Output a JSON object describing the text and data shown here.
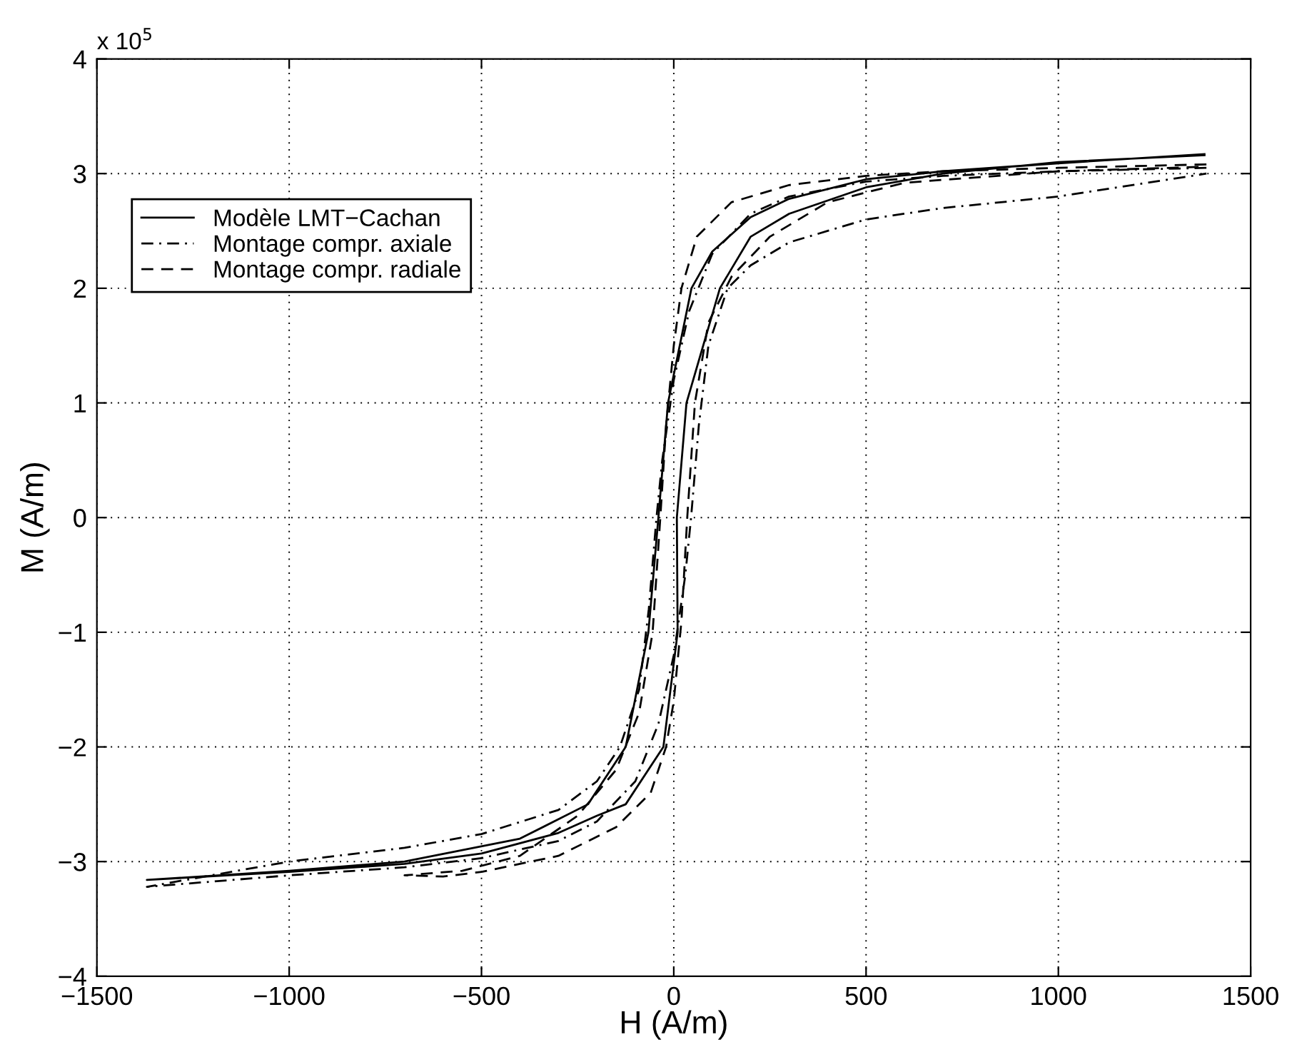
{
  "chart_data": {
    "type": "line",
    "xlabel": "H (A/m)",
    "ylabel": "M (A/m)",
    "xlim": [
      -1500,
      1500
    ],
    "xticks": [
      -1500,
      -1000,
      -500,
      0,
      500,
      1000,
      1500
    ],
    "ylim": [
      -4,
      4
    ],
    "yticks": [
      -4,
      -3,
      -2,
      -1,
      0,
      1,
      2,
      3,
      4
    ],
    "grid": true,
    "legend": "top left",
    "annotations": [
      "x 10$^{5}$"
    ],
    "series": [
      {
        "name": "Modèle LMT−Cachan",
        "color": "#000000",
        "line_style": "solid",
        "x": [
          1380,
          1000,
          700,
          500,
          300,
          200,
          100,
          46,
          -15,
          -40,
          -66,
          -125,
          -223,
          -400,
          -700,
          -1000,
          -1370,
          -1000,
          -700,
          -500,
          -300,
          -200,
          -125,
          -27,
          10,
          8,
          33,
          120,
          200,
          300,
          500,
          700,
          1000,
          1380
        ],
        "values": [
          3.17,
          3.09,
          3.02,
          2.95,
          2.78,
          2.62,
          2.32,
          2.0,
          1.0,
          0,
          -1.0,
          -2.0,
          -2.5,
          -2.8,
          -3.0,
          -3.08,
          -3.16,
          -3.09,
          -3.02,
          -2.93,
          -2.75,
          -2.6,
          -2.5,
          -2.0,
          -1.0,
          0,
          1.0,
          2.0,
          2.45,
          2.65,
          2.88,
          3.0,
          3.1,
          3.16
        ]
      },
      {
        "name": "Montage compr. axiale",
        "color": "#000000",
        "line_style": "dashdot",
        "x": [
          1385,
          1000,
          700,
          500,
          300,
          200,
          100,
          40,
          0,
          -30,
          -45,
          -65,
          -90,
          -140,
          -200,
          -300,
          -500,
          -700,
          -1000,
          -1370,
          -1000,
          -700,
          -500,
          -300,
          -200,
          -100,
          -40,
          0,
          30,
          45,
          65,
          90,
          140,
          200,
          300,
          500,
          700,
          1000,
          1385
        ],
        "values": [
          3.05,
          3.02,
          2.98,
          2.93,
          2.8,
          2.65,
          2.3,
          1.8,
          1.2,
          0.5,
          0,
          -0.8,
          -1.5,
          -2.0,
          -2.3,
          -2.55,
          -2.76,
          -2.88,
          -3.0,
          -3.22,
          -3.12,
          -3.05,
          -2.97,
          -2.82,
          -2.65,
          -2.3,
          -1.8,
          -1.2,
          -0.5,
          0,
          0.8,
          1.5,
          2.0,
          2.2,
          2.4,
          2.6,
          2.7,
          2.8,
          3.0
        ]
      },
      {
        "name": "Montage compr. radiale",
        "color": "#000000",
        "line_style": "dashed",
        "x": [
          1385,
          1000,
          700,
          500,
          300,
          150,
          60,
          20,
          0,
          -20,
          -35,
          -55,
          -90,
          -150,
          -250,
          -400,
          -550,
          -700,
          -600,
          -500,
          -300,
          -150,
          -60,
          -20,
          0,
          20,
          35,
          55,
          90,
          150,
          250,
          400,
          600,
          1000,
          1385
        ],
        "values": [
          3.08,
          3.05,
          3.02,
          2.98,
          2.9,
          2.75,
          2.45,
          2.0,
          1.5,
          0.8,
          0,
          -1.0,
          -1.7,
          -2.2,
          -2.6,
          -2.95,
          -3.08,
          -3.12,
          -3.13,
          -3.09,
          -2.95,
          -2.7,
          -2.4,
          -2.0,
          -1.6,
          -0.9,
          0,
          1.0,
          1.7,
          2.1,
          2.45,
          2.75,
          2.92,
          3.02,
          3.06
        ]
      }
    ]
  }
}
